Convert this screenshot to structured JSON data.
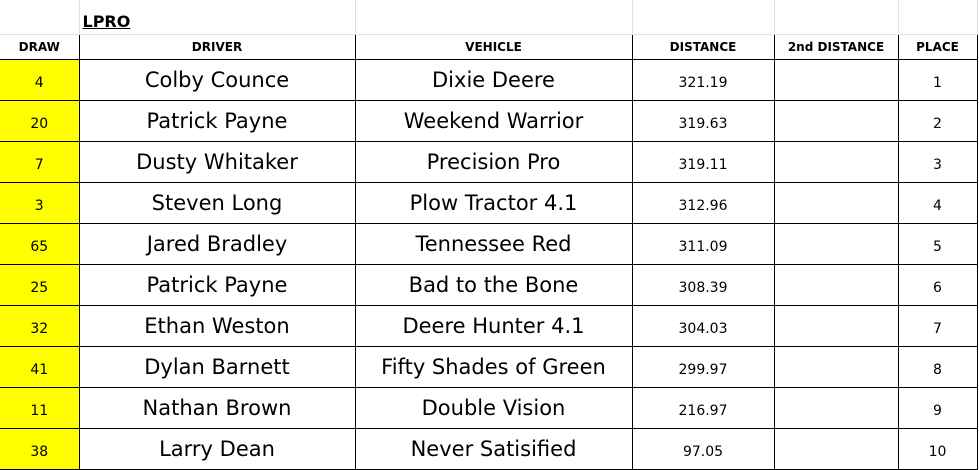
{
  "sheet": {
    "title": "LPRO",
    "headers": [
      "DRAW",
      "DRIVER",
      "VEHICLE",
      "DISTANCE",
      "2nd DISTANCE",
      "PLACE"
    ],
    "draw_highlight_color": "#ffff00",
    "rows": [
      {
        "draw": "4",
        "driver": "Colby Counce",
        "vehicle": "Dixie Deere",
        "distance": "321.19",
        "distance2": "",
        "place": "1"
      },
      {
        "draw": "20",
        "driver": "Patrick Payne",
        "vehicle": "Weekend Warrior",
        "distance": "319.63",
        "distance2": "",
        "place": "2"
      },
      {
        "draw": "7",
        "driver": "Dusty Whitaker",
        "vehicle": "Precision Pro",
        "distance": "319.11",
        "distance2": "",
        "place": "3"
      },
      {
        "draw": "3",
        "driver": "Steven Long",
        "vehicle": "Plow Tractor 4.1",
        "distance": "312.96",
        "distance2": "",
        "place": "4"
      },
      {
        "draw": "65",
        "driver": "Jared Bradley",
        "vehicle": "Tennessee Red",
        "distance": "311.09",
        "distance2": "",
        "place": "5"
      },
      {
        "draw": "25",
        "driver": "Patrick Payne",
        "vehicle": "Bad to the Bone",
        "distance": "308.39",
        "distance2": "",
        "place": "6"
      },
      {
        "draw": "32",
        "driver": "Ethan Weston",
        "vehicle": "Deere Hunter 4.1",
        "distance": "304.03",
        "distance2": "",
        "place": "7"
      },
      {
        "draw": "41",
        "driver": "Dylan Barnett",
        "vehicle": "Fifty Shades of Green",
        "distance": "299.97",
        "distance2": "",
        "place": "8"
      },
      {
        "draw": "11",
        "driver": "Nathan Brown",
        "vehicle": "Double Vision",
        "distance": "216.97",
        "distance2": "",
        "place": "9"
      },
      {
        "draw": "38",
        "driver": "Larry Dean",
        "vehicle": "Never Satisified",
        "distance": "97.05",
        "distance2": "",
        "place": "10"
      }
    ]
  }
}
